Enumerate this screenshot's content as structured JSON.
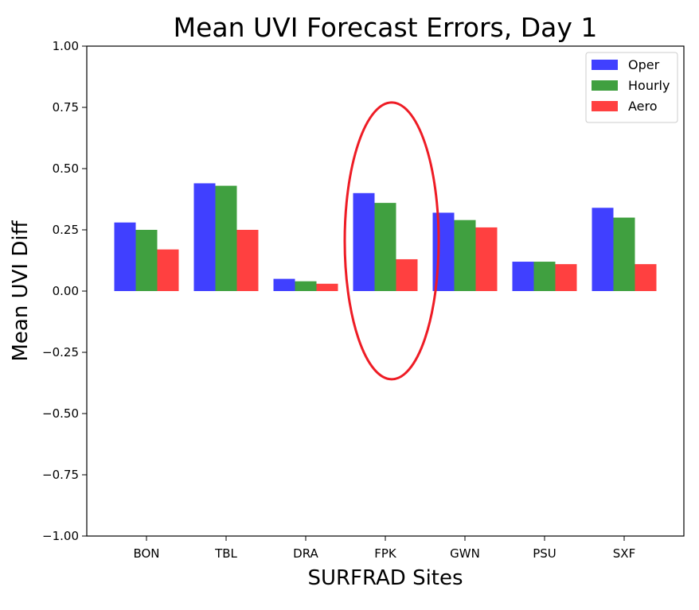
{
  "chart_data": {
    "type": "bar",
    "title": "Mean UVI Forecast Errors, Day 1",
    "xlabel": "SURFRAD Sites",
    "ylabel": "Mean UVI Diff",
    "categories": [
      "BON",
      "TBL",
      "DRA",
      "FPK",
      "GWN",
      "PSU",
      "SXF"
    ],
    "series": [
      {
        "name": "Oper",
        "color": "#4040ff",
        "values": [
          0.28,
          0.44,
          0.05,
          0.4,
          0.32,
          0.12,
          0.34
        ]
      },
      {
        "name": "Hourly",
        "color": "#40a040",
        "values": [
          0.25,
          0.43,
          0.04,
          0.36,
          0.29,
          0.12,
          0.3
        ]
      },
      {
        "name": "Aero",
        "color": "#ff4040",
        "values": [
          0.17,
          0.25,
          0.03,
          0.13,
          0.26,
          0.11,
          0.11
        ]
      }
    ],
    "ylim": [
      -1.0,
      1.0
    ],
    "yticks": [
      "−1.00",
      "−0.75",
      "−0.50",
      "−0.25",
      "0.00",
      "0.25",
      "0.50",
      "0.75",
      "1.00"
    ],
    "grid": false,
    "legend_position": "top-right",
    "annotation": {
      "type": "ellipse",
      "color": "#ee1c25",
      "highlight_category": "FPK"
    }
  }
}
